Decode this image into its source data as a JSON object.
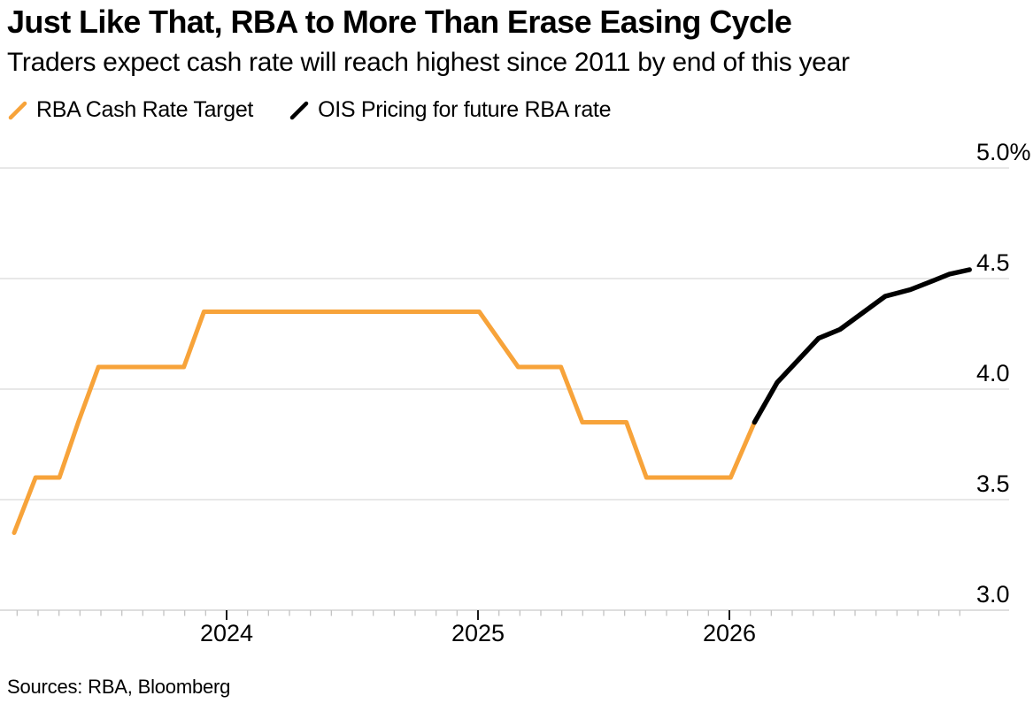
{
  "header": {
    "title": "Just Like That, RBA to More Than Erase Easing Cycle",
    "subtitle": "Traders expect cash rate will reach highest since 2011 by end of this year"
  },
  "legend": {
    "items": [
      {
        "label": "RBA Cash Rate Target",
        "color": "#F7A33A"
      },
      {
        "label": "OIS Pricing for future RBA rate",
        "color": "#000000"
      }
    ]
  },
  "footer": {
    "sources": "Sources: RBA, Bloomberg"
  },
  "chart_data": {
    "type": "line",
    "title": "Just Like That, RBA to More Than Erase Easing Cycle",
    "subtitle": "Traders expect cash rate will reach highest since 2011 by end of this year",
    "unit": "%",
    "grid": "horizontal",
    "legend_position": "top-left",
    "x_axis": {
      "type": "time",
      "range": [
        2023.1,
        2027.05
      ],
      "major_ticks": [
        {
          "t": 2024,
          "label": "2024"
        },
        {
          "t": 2025,
          "label": "2025"
        },
        {
          "t": 2026,
          "label": "2026"
        }
      ],
      "minor_ticks": "monthly",
      "minor_start_year": 2023,
      "minor_start_month": 3,
      "minor_end_year": 2026,
      "minor_end_month": 12
    },
    "y_axis": {
      "range": [
        3.0,
        5.0
      ],
      "gridlines": [
        3.5,
        4.0,
        4.5,
        5.0
      ],
      "baseline": 3.0,
      "labels": [
        {
          "value": 5.0,
          "label": "5.0%"
        },
        {
          "value": 4.5,
          "label": "4.5"
        },
        {
          "value": 4.0,
          "label": "4.0"
        },
        {
          "value": 3.5,
          "label": "3.5"
        },
        {
          "value": 3.0,
          "label": "3.0"
        }
      ]
    },
    "series": [
      {
        "name": "RBA Cash Rate Target",
        "color": "#F7A33A",
        "stroke_width": 5,
        "points": [
          {
            "date": "2023-02",
            "t": 2023.155,
            "value": 3.35
          },
          {
            "date": "2023-03",
            "t": 2023.24,
            "value": 3.6
          },
          {
            "date": "2023-04",
            "t": 2023.335,
            "value": 3.6
          },
          {
            "date": "2023-05",
            "t": 2023.41,
            "value": 3.85
          },
          {
            "date": "2023-06",
            "t": 2023.49,
            "value": 4.1
          },
          {
            "date": "2023-10",
            "t": 2023.83,
            "value": 4.1
          },
          {
            "date": "2023-11",
            "t": 2023.91,
            "value": 4.35
          },
          {
            "date": "2025-01",
            "t": 2025.005,
            "value": 4.35
          },
          {
            "date": "2025-02",
            "t": 2025.16,
            "value": 4.1
          },
          {
            "date": "2025-04",
            "t": 2025.33,
            "value": 4.1
          },
          {
            "date": "2025-05",
            "t": 2025.415,
            "value": 3.85
          },
          {
            "date": "2025-07",
            "t": 2025.59,
            "value": 3.85
          },
          {
            "date": "2025-08",
            "t": 2025.67,
            "value": 3.6
          },
          {
            "date": "2026-01",
            "t": 2026.005,
            "value": 3.6
          },
          {
            "date": "2026-02",
            "t": 2026.1,
            "value": 3.85
          }
        ]
      },
      {
        "name": "OIS Pricing for future RBA rate",
        "color": "#000000",
        "stroke_width": 5.5,
        "points": [
          {
            "date": "2026-02",
            "t": 2026.1,
            "value": 3.85
          },
          {
            "date": "2026-03",
            "t": 2026.19,
            "value": 4.03
          },
          {
            "date": "2026-05",
            "t": 2026.355,
            "value": 4.23
          },
          {
            "date": "2026-06",
            "t": 2026.44,
            "value": 4.27
          },
          {
            "date": "2026-08",
            "t": 2026.62,
            "value": 4.42
          },
          {
            "date": "2026-09",
            "t": 2026.72,
            "value": 4.45
          },
          {
            "date": "2026-10",
            "t": 2026.81,
            "value": 4.49
          },
          {
            "date": "2026-11",
            "t": 2026.875,
            "value": 4.52
          },
          {
            "date": "2026-12",
            "t": 2026.955,
            "value": 4.54
          }
        ]
      }
    ]
  }
}
